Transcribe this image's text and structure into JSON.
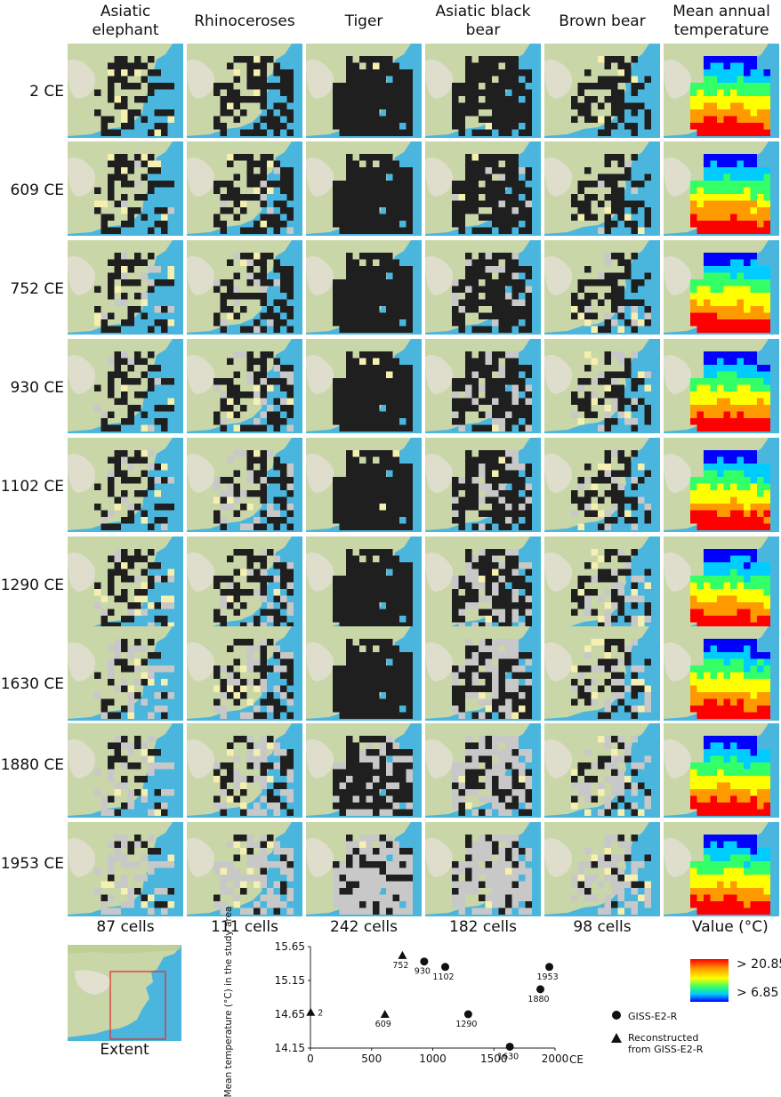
{
  "columns": [
    {
      "label": "Asiatic elephant"
    },
    {
      "label": "Rhinoceroses"
    },
    {
      "label": "Tiger"
    },
    {
      "label": "Asiatic black bear"
    },
    {
      "label": "Brown bear"
    },
    {
      "label": "Mean annual temperature"
    }
  ],
  "rows": [
    {
      "label": "2 CE"
    },
    {
      "label": "609 CE"
    },
    {
      "label": "752 CE"
    },
    {
      "label": "930 CE"
    },
    {
      "label": "1102 CE"
    },
    {
      "label": "1290 CE"
    },
    {
      "label": "1630 CE"
    },
    {
      "label": "1880 CE"
    },
    {
      "label": "1953 CE"
    }
  ],
  "cell_counts": [
    "87 cells",
    "111 cells",
    "242 cells",
    "182 cells",
    "98 cells"
  ],
  "legend": {
    "title": "Value  (°C)",
    "high_label": "> 20.85",
    "low_label": "> 6.85",
    "colors": [
      "#ff0000",
      "#ff9900",
      "#ffff00",
      "#33ff66",
      "#00ccff",
      "#0000ff"
    ]
  },
  "extent_label": "Extent",
  "colors": {
    "occupied": "#1f1f1f",
    "lost": "#c8c8c8",
    "extant_gap": "#f5f0b0",
    "sea": "#4ab6de",
    "land": "#c9d6a8"
  },
  "chart_data": {
    "type": "scatter",
    "title": "",
    "xlabel": "CE",
    "ylabel": "Mean temperature (°C) in the study area",
    "xlim": [
      0,
      2000
    ],
    "ylim": [
      14.15,
      15.65
    ],
    "xticks": [
      "0",
      "500",
      "1000",
      "1500",
      "2000"
    ],
    "yticks": [
      "14.15",
      "14.65",
      "15.15",
      "15.65"
    ],
    "series": [
      {
        "name": "GISS-E2-R",
        "marker": "circle",
        "points": [
          {
            "x": 930,
            "y": 15.43,
            "label": "930"
          },
          {
            "x": 1102,
            "y": 15.35,
            "label": "1102"
          },
          {
            "x": 1290,
            "y": 14.65,
            "label": "1290"
          },
          {
            "x": 1630,
            "y": 14.17,
            "label": "1630"
          },
          {
            "x": 1880,
            "y": 15.02,
            "label": "1880"
          },
          {
            "x": 1953,
            "y": 15.35,
            "label": "1953"
          }
        ]
      },
      {
        "name": "Reconstructed from GISS-E2-R",
        "marker": "triangle",
        "points": [
          {
            "x": 2,
            "y": 14.68,
            "label": "2"
          },
          {
            "x": 609,
            "y": 14.65,
            "label": "609"
          },
          {
            "x": 752,
            "y": 15.52,
            "label": "752"
          }
        ]
      }
    ]
  }
}
